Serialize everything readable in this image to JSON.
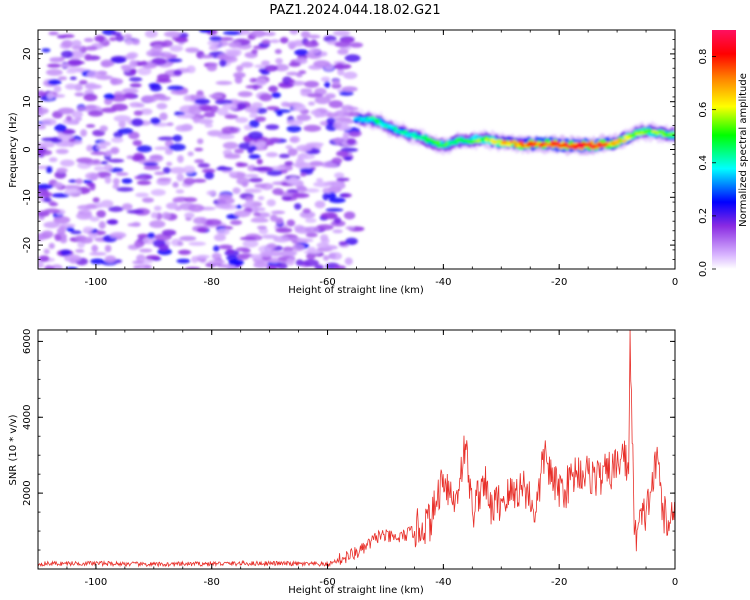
{
  "figure_title": "PAZ1.2024.044.18.02.G21",
  "chart_data": [
    {
      "type": "heatmap",
      "title": "PAZ1.2024.044.18.02.G21",
      "xlabel": "Height of straight line (km)",
      "ylabel": "Frequency (Hz)",
      "xlim": [
        -110,
        0
      ],
      "ylim": [
        -25,
        25
      ],
      "xticks": [
        -100,
        -80,
        -60,
        -40,
        -20,
        0
      ],
      "yticks": [
        -20,
        -10,
        0,
        10,
        20
      ],
      "colorbar": {
        "label": "Normalized spectral amplitude",
        "range": [
          0,
          0.9
        ],
        "ticks": [
          0.0,
          0.2,
          0.4,
          0.6,
          0.8
        ],
        "colormap": [
          "#ffffff",
          "#8a2be2",
          "#0000ff",
          "#00ffff",
          "#00ff00",
          "#ffff00",
          "#ff8000",
          "#ff0000",
          "#ff1060"
        ]
      },
      "noise_region": {
        "x": [
          -110,
          -55
        ],
        "y": [
          -25,
          25
        ],
        "amplitude": [
          0.05,
          0.25
        ]
      },
      "signal_ridge": {
        "x": [
          -55,
          -52,
          -48,
          -44,
          -40,
          -37,
          -33,
          -30,
          -26,
          -22,
          -18,
          -14,
          -10,
          -6,
          -3,
          0
        ],
        "frequency": [
          6.5,
          6.2,
          4.0,
          2.5,
          0.8,
          1.8,
          2.2,
          1.5,
          1.0,
          1.2,
          0.8,
          0.8,
          1.5,
          3.8,
          3.5,
          3.0
        ],
        "amplitude": [
          0.35,
          0.45,
          0.4,
          0.45,
          0.5,
          0.5,
          0.55,
          0.65,
          0.75,
          0.75,
          0.85,
          0.85,
          0.65,
          0.55,
          0.55,
          0.5
        ]
      },
      "grid": false
    },
    {
      "type": "line",
      "xlabel": "Height of straight line (km)",
      "ylabel": "SNR (10 * v/v)",
      "xlim": [
        -110,
        0
      ],
      "ylim": [
        0,
        6300
      ],
      "xticks": [
        -100,
        -80,
        -60,
        -40,
        -20,
        0
      ],
      "yticks": [
        2000,
        4000,
        6000
      ],
      "color": "#e8302a",
      "x": [
        -110,
        -100,
        -90,
        -80,
        -70,
        -60,
        -57,
        -54,
        -51,
        -48,
        -45,
        -42,
        -40,
        -38,
        -36.2,
        -35,
        -33,
        -32,
        -30,
        -28,
        -26,
        -24,
        -22.5,
        -21,
        -19,
        -17,
        -15,
        -13,
        -12,
        -10,
        -9,
        -8,
        -7.8,
        -7,
        -5,
        -3,
        -2,
        -1,
        0
      ],
      "values": [
        140,
        150,
        120,
        140,
        150,
        120,
        300,
        500,
        900,
        800,
        1000,
        1300,
        2500,
        1700,
        3300,
        1500,
        2400,
        1600,
        1800,
        2000,
        2200,
        1500,
        3100,
        2200,
        2100,
        2600,
        2500,
        2400,
        2500,
        2700,
        3100,
        2500,
        6300,
        900,
        1500,
        2900,
        1500,
        1000,
        2000
      ],
      "grid": false
    }
  ]
}
